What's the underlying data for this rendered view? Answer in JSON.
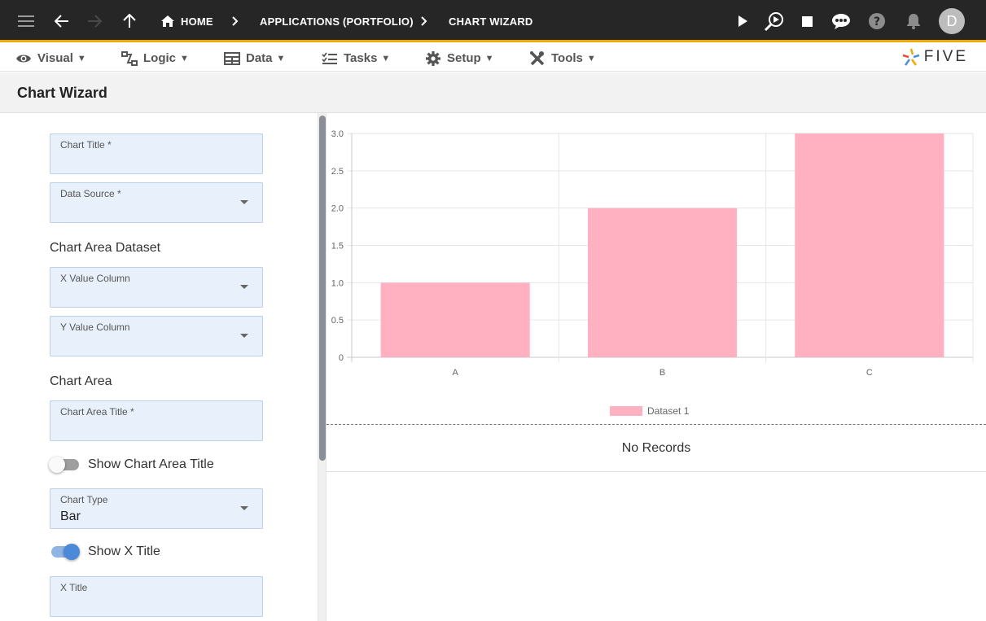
{
  "topbar": {
    "breadcrumbs": [
      "HOME",
      "APPLICATIONS (PORTFOLIO)",
      "CHART WIZARD"
    ],
    "avatar_letter": "D",
    "accent_color": "#f2a900",
    "icons": [
      "menu-icon",
      "back-arrow-icon",
      "forward-arrow-icon",
      "up-arrow-icon",
      "home-icon",
      "play-icon",
      "inspect-icon",
      "stop-icon",
      "chat-icon",
      "help-icon",
      "bell-icon"
    ]
  },
  "menubar": {
    "items": [
      {
        "label": "Visual",
        "icon": "eye-icon"
      },
      {
        "label": "Logic",
        "icon": "flow-icon"
      },
      {
        "label": "Data",
        "icon": "table-icon"
      },
      {
        "label": "Tasks",
        "icon": "checklist-icon"
      },
      {
        "label": "Setup",
        "icon": "gear-icon"
      },
      {
        "label": "Tools",
        "icon": "tools-icon"
      }
    ],
    "caret": "▼",
    "logo_text": "FIVE"
  },
  "page": {
    "title": "Chart Wizard"
  },
  "form": {
    "chart_title_label": "Chart Title *",
    "chart_title_value": "",
    "data_source_label": "Data Source *",
    "data_source_value": "",
    "chart_area_dataset_heading": "Chart Area Dataset",
    "x_value_column_label": "X Value Column",
    "y_value_column_label": "Y Value Column",
    "chart_area_heading": "Chart Area",
    "chart_area_title_label": "Chart Area Title *",
    "chart_area_title_value": "",
    "show_chart_area_title_label": "Show Chart Area Title",
    "show_chart_area_title": false,
    "chart_type_label": "Chart Type",
    "chart_type_value": "Bar",
    "show_x_title_label": "Show X Title",
    "show_x_title": true,
    "x_title_label": "X Title",
    "x_title_value": ""
  },
  "chart_data": {
    "type": "bar",
    "categories": [
      "A",
      "B",
      "C"
    ],
    "series": [
      {
        "name": "Dataset 1",
        "values": [
          1,
          2,
          3
        ],
        "color": "#ffb0c1"
      }
    ],
    "ylim": [
      0,
      3
    ],
    "y_ticks": [
      "0",
      "0.5",
      "1.0",
      "1.5",
      "2.0",
      "2.5",
      "3.0"
    ],
    "grid": true,
    "legend": "bottom",
    "title": "",
    "xlabel": "",
    "ylabel": ""
  },
  "table": {
    "empty_text": "No Records"
  }
}
